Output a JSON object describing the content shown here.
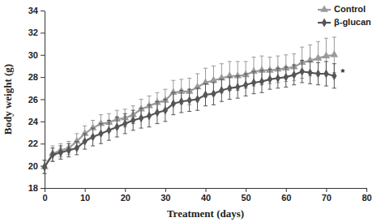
{
  "chart_data": {
    "type": "line",
    "x_label": "Treatment  (days)",
    "y_label": "Body weight (g)",
    "x": [
      0,
      2,
      4,
      6,
      8,
      10,
      12,
      14,
      16,
      18,
      20,
      22,
      24,
      26,
      28,
      30,
      32,
      34,
      36,
      38,
      40,
      42,
      44,
      46,
      48,
      50,
      52,
      54,
      56,
      58,
      60,
      62,
      64,
      66,
      68,
      70,
      72
    ],
    "series": [
      {
        "name": "Control",
        "color": "#9a9a9a",
        "marker": "triangle",
        "values": [
          19.9,
          21.1,
          21.4,
          21.6,
          22.2,
          22.9,
          23.4,
          23.8,
          23.9,
          24.2,
          24.3,
          24.6,
          25.1,
          25.4,
          25.7,
          25.9,
          26.6,
          26.7,
          26.7,
          27.1,
          27.5,
          27.7,
          27.9,
          28.1,
          28.1,
          28.2,
          28.5,
          28.6,
          28.6,
          28.7,
          28.8,
          28.9,
          29.3,
          29.5,
          29.7,
          29.9,
          30.0
        ],
        "errors": [
          0.6,
          0.7,
          0.6,
          0.6,
          0.7,
          0.7,
          0.7,
          0.8,
          0.8,
          0.8,
          0.8,
          0.8,
          0.9,
          0.9,
          0.9,
          1.0,
          1.1,
          1.1,
          1.2,
          1.2,
          1.3,
          1.3,
          1.3,
          1.3,
          1.3,
          1.2,
          1.3,
          1.3,
          1.2,
          1.2,
          1.2,
          1.2,
          1.4,
          1.4,
          1.5,
          1.6,
          1.6
        ]
      },
      {
        "name": "β-glucan",
        "color": "#555555",
        "marker": "diamond",
        "values": [
          19.9,
          21.0,
          21.2,
          21.4,
          21.6,
          22.2,
          22.6,
          22.9,
          23.2,
          23.5,
          23.8,
          24.1,
          24.3,
          24.5,
          24.8,
          25.0,
          25.6,
          25.8,
          25.9,
          26.0,
          26.4,
          26.5,
          26.8,
          27.0,
          27.1,
          27.3,
          27.5,
          27.6,
          27.8,
          27.9,
          28.0,
          28.2,
          28.5,
          28.4,
          28.3,
          28.3,
          28.1
        ],
        "errors": [
          0.6,
          0.6,
          0.6,
          0.6,
          0.6,
          0.7,
          0.8,
          0.9,
          0.9,
          0.9,
          0.9,
          0.9,
          0.9,
          1.0,
          1.0,
          1.0,
          1.0,
          1.0,
          1.0,
          1.0,
          1.0,
          1.0,
          1.0,
          1.0,
          1.0,
          1.0,
          1.0,
          1.0,
          0.9,
          0.9,
          0.9,
          0.9,
          1.0,
          1.0,
          1.0,
          1.1,
          1.1
        ]
      }
    ],
    "xlim": [
      0,
      80
    ],
    "xticks": [
      0,
      10,
      20,
      30,
      40,
      50,
      60,
      70,
      80
    ],
    "ylim": [
      18,
      34
    ],
    "yticks": [
      18,
      20,
      22,
      24,
      26,
      28,
      30,
      32,
      34
    ],
    "grid": false,
    "legend": "top-right",
    "annotations": [
      {
        "text": "*",
        "x": 73.6,
        "y": 28.3
      }
    ]
  }
}
